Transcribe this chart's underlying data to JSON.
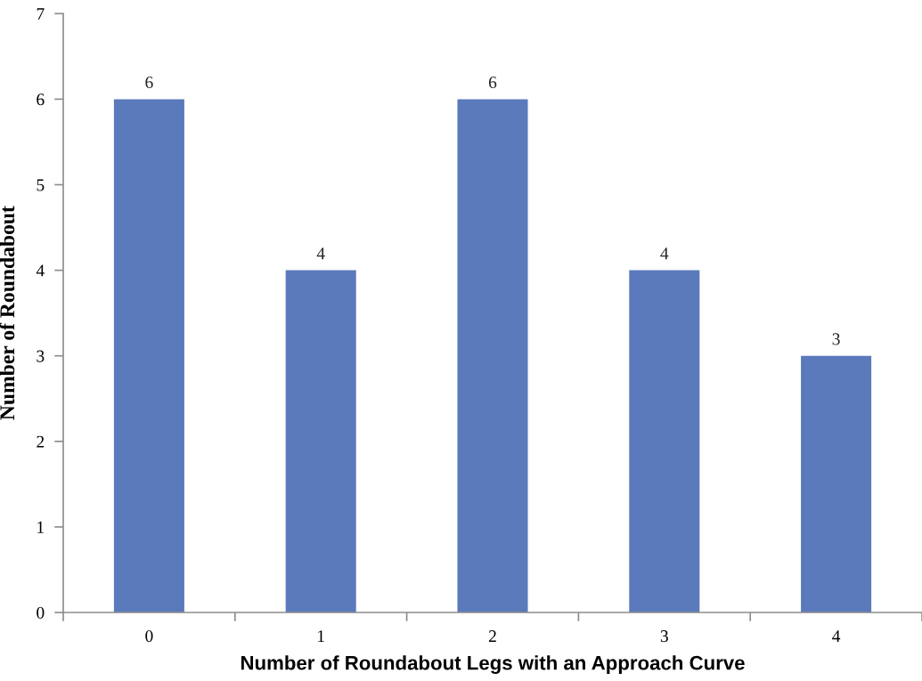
{
  "chart_data": {
    "type": "bar",
    "xlabel": "Number of Roundabout Legs with an Approach Curve",
    "ylabel": "Number of Roundabout",
    "categories": [
      "0",
      "1",
      "2",
      "3",
      "4"
    ],
    "values": [
      6,
      4,
      6,
      4,
      3
    ],
    "color": "#5b7abb",
    "ylim": [
      0,
      7
    ],
    "yticks": [
      0,
      1,
      2,
      3,
      4,
      5,
      6,
      7
    ],
    "grid": false,
    "data_labels": true
  }
}
